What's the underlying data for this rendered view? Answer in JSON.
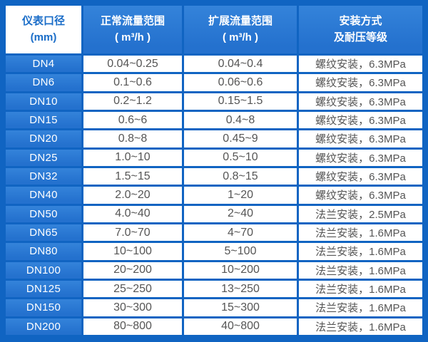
{
  "chart_data": {
    "type": "table",
    "columns": [
      {
        "line1": "仪表口径",
        "line2": "(mm)"
      },
      {
        "line1": "正常流量范围",
        "line2": "( m³/h )"
      },
      {
        "line1": "扩展流量范围",
        "line2": "( m³/h )"
      },
      {
        "line1": "安装方式",
        "line2": "及耐压等级"
      }
    ],
    "rows": [
      [
        "DN4",
        "0.04~0.25",
        "0.04~0.4",
        "螺纹安装，6.3MPa"
      ],
      [
        "DN6",
        "0.1~0.6",
        "0.06~0.6",
        "螺纹安装，6.3MPa"
      ],
      [
        "DN10",
        "0.2~1.2",
        "0.15~1.5",
        "螺纹安装，6.3MPa"
      ],
      [
        "DN15",
        "0.6~6",
        "0.4~8",
        "螺纹安装，6.3MPa"
      ],
      [
        "DN20",
        "0.8~8",
        "0.45~9",
        "螺纹安装，6.3MPa"
      ],
      [
        "DN25",
        "1.0~10",
        "0.5~10",
        "螺纹安装，6.3MPa"
      ],
      [
        "DN32",
        "1.5~15",
        "0.8~15",
        "螺纹安装，6.3MPa"
      ],
      [
        "DN40",
        "2.0~20",
        "1~20",
        "螺纹安装，6.3MPa"
      ],
      [
        "DN50",
        "4.0~40",
        "2~40",
        "法兰安装，2.5MPa"
      ],
      [
        "DN65",
        "7.0~70",
        "4~70",
        "法兰安装，1.6MPa"
      ],
      [
        "DN80",
        "10~100",
        "5~100",
        "法兰安装，1.6MPa"
      ],
      [
        "DN100",
        "20~200",
        "10~200",
        "法兰安装，1.6MPa"
      ],
      [
        "DN125",
        "25~250",
        "13~250",
        "法兰安装，1.6MPa"
      ],
      [
        "DN150",
        "30~300",
        "15~300",
        "法兰安装，1.6MPa"
      ],
      [
        "DN200",
        "80~800",
        "40~800",
        "法兰安装，1.6MPa"
      ]
    ]
  },
  "colors": {
    "bg": "#1064c2",
    "cellBlue": "#2471ce",
    "cellBlueLight": "#3483da",
    "cornerText": "#1a6dc8",
    "dataText": "#555555"
  }
}
